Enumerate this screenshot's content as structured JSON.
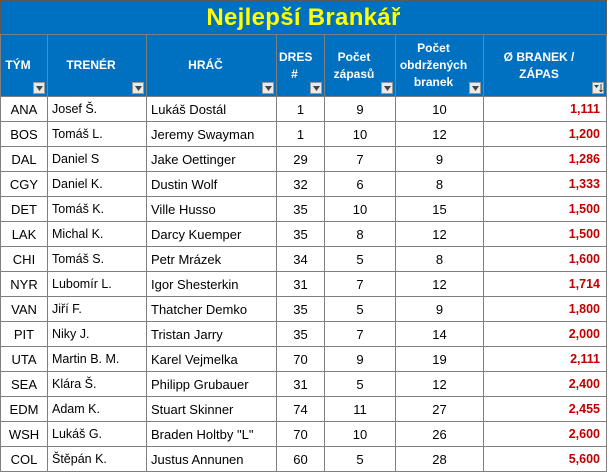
{
  "title": "Nejlepší Brankář",
  "headers": {
    "team": "TÝM",
    "coach": "TRENÉR",
    "player": "HRÁČ",
    "number": "DRES #",
    "games": "Počet zápasů",
    "goals": "Počet obdržených branek",
    "avg": "Ø BRANEK / ZÁPAS"
  },
  "icons": {
    "filter": "filter-dropdown-icon",
    "sorted": "sort-descending-filter-icon"
  },
  "colors": {
    "header_bg": "#0070c0",
    "title_text": "#ffff00",
    "avg_text": "#c00000"
  },
  "rows": [
    {
      "team": "ANA",
      "coach": "Josef Š.",
      "player": "Lukáš Dostál",
      "number": "1",
      "games": "9",
      "goals": "10",
      "avg": "1,111"
    },
    {
      "team": "BOS",
      "coach": "Tomáš L.",
      "player": "Jeremy Swayman",
      "number": "1",
      "games": "10",
      "goals": "12",
      "avg": "1,200"
    },
    {
      "team": "DAL",
      "coach": "Daniel S",
      "player": "Jake Oettinger",
      "number": "29",
      "games": "7",
      "goals": "9",
      "avg": "1,286"
    },
    {
      "team": "CGY",
      "coach": "Daniel K.",
      "player": "Dustin Wolf",
      "number": "32",
      "games": "6",
      "goals": "8",
      "avg": "1,333"
    },
    {
      "team": "DET",
      "coach": " Tomáš K.",
      "player": "Ville Husso",
      "number": "35",
      "games": "10",
      "goals": "15",
      "avg": "1,500"
    },
    {
      "team": "LAK",
      "coach": "Michal K.",
      "player": "Darcy Kuemper",
      "number": "35",
      "games": "8",
      "goals": "12",
      "avg": "1,500"
    },
    {
      "team": "CHI",
      "coach": "Tomáš S.",
      "player": "Petr Mrázek",
      "number": "34",
      "games": "5",
      "goals": "8",
      "avg": "1,600"
    },
    {
      "team": "NYR",
      "coach": "Lubomír L.",
      "player": "Igor Shesterkin",
      "number": "31",
      "games": "7",
      "goals": "12",
      "avg": "1,714"
    },
    {
      "team": "VAN",
      "coach": "Jiří F.",
      "player": "Thatcher Demko",
      "number": "35",
      "games": "5",
      "goals": "9",
      "avg": "1,800"
    },
    {
      "team": "PIT",
      "coach": "Niky J.",
      "player": "Tristan Jarry",
      "number": "35",
      "games": "7",
      "goals": "14",
      "avg": "2,000"
    },
    {
      "team": "UTA",
      "coach": "Martin B. M.",
      "player": "Karel Vejmelka",
      "number": "70",
      "games": "9",
      "goals": "19",
      "avg": "2,111"
    },
    {
      "team": "SEA",
      "coach": "Klára Š.",
      "player": "Philipp Grubauer",
      "number": "31",
      "games": "5",
      "goals": "12",
      "avg": "2,400"
    },
    {
      "team": "EDM",
      "coach": "Adam K.",
      "player": "Stuart Skinner",
      "number": "74",
      "games": "11",
      "goals": "27",
      "avg": "2,455"
    },
    {
      "team": "WSH",
      "coach": "Lukáš G.",
      "player": "Braden Holtby \"L\"",
      "number": "70",
      "games": "10",
      "goals": "26",
      "avg": "2,600"
    },
    {
      "team": "COL",
      "coach": "Štěpán K.",
      "player": "Justus Annunen",
      "number": "60",
      "games": "5",
      "goals": "28",
      "avg": "5,600"
    }
  ]
}
